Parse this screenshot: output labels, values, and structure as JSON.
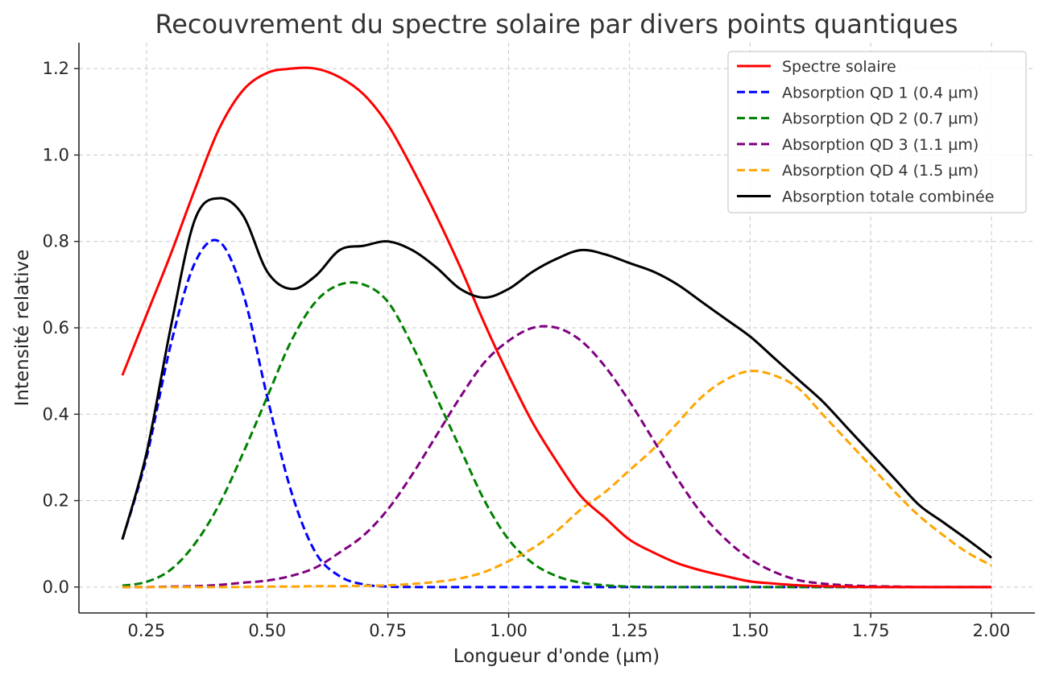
{
  "chart_data": {
    "type": "line",
    "title": "Recouvrement du spectre solaire par divers points quantiques",
    "xlabel": "Longueur d'onde (µm)",
    "ylabel": "Intensité relative",
    "xlim": [
      0.11,
      2.09
    ],
    "ylim": [
      -0.06,
      1.26
    ],
    "xticks": [
      0.25,
      0.5,
      0.75,
      1.0,
      1.25,
      1.5,
      1.75,
      2.0
    ],
    "xtick_labels": [
      "0.25",
      "0.50",
      "0.75",
      "1.00",
      "1.25",
      "1.50",
      "1.75",
      "2.00"
    ],
    "yticks": [
      0.0,
      0.2,
      0.4,
      0.6,
      0.8,
      1.0,
      1.2
    ],
    "ytick_labels": [
      "0.0",
      "0.2",
      "0.4",
      "0.6",
      "0.8",
      "1.0",
      "1.2"
    ],
    "grid": true,
    "legend_position": "top-right",
    "x": [
      0.2,
      0.25,
      0.3,
      0.35,
      0.4,
      0.45,
      0.5,
      0.55,
      0.6,
      0.65,
      0.7,
      0.75,
      0.8,
      0.85,
      0.9,
      0.95,
      1.0,
      1.05,
      1.1,
      1.15,
      1.2,
      1.25,
      1.3,
      1.35,
      1.4,
      1.45,
      1.5,
      1.55,
      1.6,
      1.65,
      1.7,
      1.75,
      1.8,
      1.85,
      1.9,
      1.95,
      2.0
    ],
    "series": [
      {
        "name": "Spectre solaire",
        "color": "#ff0000",
        "style": "solid",
        "values": [
          0.49,
          0.63,
          0.77,
          0.92,
          1.06,
          1.15,
          1.19,
          1.2,
          1.2,
          1.18,
          1.14,
          1.07,
          0.97,
          0.86,
          0.74,
          0.61,
          0.49,
          0.38,
          0.29,
          0.21,
          0.16,
          0.11,
          0.08,
          0.055,
          0.038,
          0.025,
          0.013,
          0.008,
          0.004,
          0.002,
          0.001,
          0.0,
          0.0,
          0.0,
          0.0,
          0.0,
          0.0
        ]
      },
      {
        "name": "Absorption QD 1 (0.4 µm)",
        "color": "#0000ff",
        "style": "dashed",
        "values": [
          0.11,
          0.3,
          0.56,
          0.75,
          0.8,
          0.68,
          0.44,
          0.22,
          0.08,
          0.025,
          0.006,
          0.001,
          0.0,
          0.0,
          0.0,
          0.0,
          0.0,
          0.0,
          0.0,
          0.0,
          0.0,
          0.0,
          0.0,
          0.0,
          0.0,
          0.0,
          0.0,
          0.0,
          0.0,
          0.0,
          0.0,
          0.0,
          0.0,
          0.0,
          0.0,
          0.0,
          0.0
        ]
      },
      {
        "name": "Absorption QD 2 (0.7 µm)",
        "color": "#008000",
        "style": "dashed",
        "values": [
          0.003,
          0.012,
          0.04,
          0.1,
          0.19,
          0.31,
          0.44,
          0.57,
          0.66,
          0.7,
          0.7,
          0.66,
          0.56,
          0.44,
          0.32,
          0.2,
          0.11,
          0.055,
          0.025,
          0.01,
          0.004,
          0.001,
          0.0,
          0.0,
          0.0,
          0.0,
          0.0,
          0.0,
          0.0,
          0.0,
          0.0,
          0.0,
          0.0,
          0.0,
          0.0,
          0.0,
          0.0
        ]
      },
      {
        "name": "Absorption QD 3 (1.1 µm)",
        "color": "#800080",
        "style": "dashed",
        "values": [
          0.0,
          0.0,
          0.001,
          0.002,
          0.005,
          0.01,
          0.015,
          0.026,
          0.045,
          0.08,
          0.12,
          0.18,
          0.26,
          0.35,
          0.44,
          0.52,
          0.57,
          0.6,
          0.6,
          0.57,
          0.51,
          0.43,
          0.34,
          0.25,
          0.17,
          0.11,
          0.065,
          0.035,
          0.016,
          0.008,
          0.004,
          0.002,
          0.001,
          0.0,
          0.0,
          0.0,
          0.0
        ]
      },
      {
        "name": "Absorption QD 4 (1.5 µm)",
        "color": "#ffa500",
        "style": "dashed",
        "values": [
          0.0,
          0.0,
          0.0,
          0.0,
          0.0,
          0.0,
          0.001,
          0.001,
          0.002,
          0.002,
          0.003,
          0.004,
          0.007,
          0.012,
          0.02,
          0.035,
          0.06,
          0.09,
          0.13,
          0.18,
          0.22,
          0.27,
          0.32,
          0.38,
          0.44,
          0.48,
          0.5,
          0.49,
          0.46,
          0.4,
          0.34,
          0.28,
          0.22,
          0.165,
          0.12,
          0.08,
          0.05
        ]
      },
      {
        "name": "Absorption totale combinée",
        "color": "#000000",
        "style": "solid",
        "values": [
          0.11,
          0.31,
          0.6,
          0.85,
          0.9,
          0.86,
          0.73,
          0.69,
          0.72,
          0.78,
          0.79,
          0.8,
          0.78,
          0.74,
          0.69,
          0.67,
          0.69,
          0.73,
          0.76,
          0.78,
          0.77,
          0.75,
          0.73,
          0.7,
          0.66,
          0.62,
          0.58,
          0.53,
          0.48,
          0.43,
          0.37,
          0.31,
          0.25,
          0.19,
          0.15,
          0.11,
          0.068
        ]
      }
    ]
  }
}
